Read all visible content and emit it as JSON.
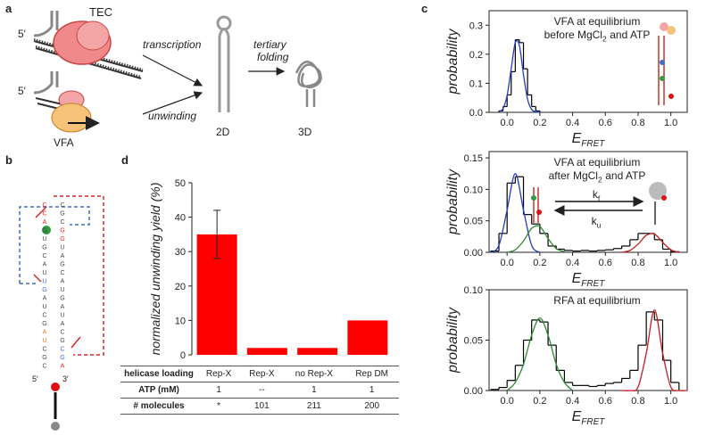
{
  "panel_labels": [
    "a",
    "b",
    "c",
    "d"
  ],
  "diagram_a": {
    "tec": "TEC",
    "five_prime_top": "5′",
    "five_prime_bottom": "5′",
    "vfa": "VFA",
    "transcription": "transcription",
    "unwinding": "unwinding",
    "tertiary": "tertiary",
    "folding": "folding",
    "two_d": "2D",
    "three_d": "3D"
  },
  "diagram_b": {
    "five_prime": "5′",
    "three_prime": "3′",
    "letters": [
      {
        "text": "C",
        "color": "#d62728"
      },
      {
        "text": "C",
        "color": "#d62728"
      },
      {
        "text": "A",
        "color": "#d62728"
      },
      {
        "text": "G",
        "color": "#444444"
      },
      {
        "text": "U",
        "color": "#444444"
      },
      {
        "text": "G",
        "color": "#444444"
      },
      {
        "text": "C",
        "color": "#444444"
      },
      {
        "text": "A",
        "color": "#444444"
      },
      {
        "text": "U",
        "color": "#444444"
      },
      {
        "text": "U",
        "color": "#3a6fc4"
      },
      {
        "text": "G",
        "color": "#3a6fc4"
      },
      {
        "text": "A",
        "color": "#444444"
      },
      {
        "text": "U",
        "color": "#444444"
      },
      {
        "text": "C",
        "color": "#444444"
      },
      {
        "text": "G",
        "color": "#444444"
      },
      {
        "text": "A",
        "color": "#e07b2a"
      },
      {
        "text": "U",
        "color": "#e07b2a"
      },
      {
        "text": "C",
        "color": "#444444"
      },
      {
        "text": "G",
        "color": "#444444"
      },
      {
        "text": "C",
        "color": "#444444"
      },
      {
        "text": "A",
        "color": "#d62728"
      },
      {
        "text": "G",
        "color": "#3a6fc4"
      },
      {
        "text": "C",
        "color": "#3a6fc4"
      },
      {
        "text": "G",
        "color": "#444444"
      },
      {
        "text": "C",
        "color": "#444444"
      },
      {
        "text": "A",
        "color": "#444444"
      },
      {
        "text": "U",
        "color": "#444444"
      },
      {
        "text": "A",
        "color": "#444444"
      },
      {
        "text": "G",
        "color": "#444444"
      },
      {
        "text": "U",
        "color": "#444444"
      },
      {
        "text": "A",
        "color": "#444444"
      },
      {
        "text": "C",
        "color": "#444444"
      },
      {
        "text": "G",
        "color": "#444444"
      },
      {
        "text": "A",
        "color": "#444444"
      },
      {
        "text": "U",
        "color": "#444444"
      },
      {
        "text": "G",
        "color": "#d62728"
      },
      {
        "text": "G",
        "color": "#d62728"
      },
      {
        "text": "C",
        "color": "#444444"
      },
      {
        "text": "G",
        "color": "#444444"
      },
      {
        "text": "C",
        "color": "#444444"
      }
    ]
  },
  "chart_data": [
    {
      "type": "bar",
      "ylabel": "normalized unwinding yield (%)",
      "values": [
        35,
        2,
        2,
        10
      ],
      "errors": [
        7,
        null,
        null,
        null
      ],
      "color": "#ff0000",
      "ylim": [
        0,
        50
      ],
      "yticks": [
        0,
        10,
        20,
        30,
        40,
        50
      ],
      "table": {
        "rows": [
          [
            "helicase loading",
            "Rep-X",
            "Rep-X",
            "no Rep-X",
            "Rep DM"
          ],
          [
            "ATP (mM)",
            "1",
            "--",
            "1",
            "1"
          ],
          [
            "# molecules",
            "*",
            "101",
            "211",
            "200"
          ]
        ]
      }
    },
    {
      "type": "histogram",
      "ylabel": "probability",
      "xlabel": "E",
      "xlabel_sub": "FRET",
      "annotation": [
        "VFA at equilibrium",
        {
          "text": "before MgCl",
          "sub": "2",
          "after": "and ATP"
        }
      ],
      "bins": [
        -0.05,
        -0.025,
        0,
        0.025,
        0.05,
        0.075,
        0.1,
        0.125,
        0.15,
        0.175,
        0.2
      ],
      "values": [
        0.005,
        0.02,
        0.06,
        0.14,
        0.25,
        0.24,
        0.15,
        0.06,
        0.02,
        0.005
      ],
      "color": "#000000",
      "fits": [
        {
          "color": "#1f3fbf",
          "x": [
            -0.05,
            -0.025,
            0,
            0.025,
            0.05,
            0.075,
            0.1,
            0.125,
            0.15,
            0.175,
            0.2
          ],
          "values": [
            0.002,
            0.013,
            0.058,
            0.15,
            0.24,
            0.23,
            0.13,
            0.045,
            0.01,
            0.002,
            0
          ]
        }
      ],
      "xlim": [
        -0.11,
        1.1
      ],
      "xticks": [
        {
          "value": 0,
          "label": "0.0"
        },
        {
          "value": 0.2,
          "label": "0.2"
        },
        {
          "value": 0.4,
          "label": "0.4"
        },
        {
          "value": 0.6,
          "label": "0.6"
        },
        {
          "value": 0.8,
          "label": "0.8"
        },
        {
          "value": 1,
          "label": "1.0"
        }
      ],
      "ylim": [
        0,
        0.35
      ],
      "yticks": [
        {
          "value": 0,
          "label": "0.0"
        },
        {
          "value": 0.1,
          "label": "0.1"
        },
        {
          "value": 0.2,
          "label": "0.2"
        },
        {
          "value": 0.3,
          "label": "0.3"
        }
      ]
    },
    {
      "type": "histogram",
      "ylabel": "probability",
      "xlabel": "E",
      "xlabel_sub": "FRET",
      "annotation": [
        "VFA at equilibrium",
        {
          "text": "after MgCl",
          "sub": "2",
          "after": "and ATP"
        }
      ],
      "rates": [
        {
          "text": "k",
          "sub": "f"
        },
        {
          "text": "k",
          "sub": "u"
        }
      ],
      "bins": [
        -0.1,
        -0.05,
        0,
        0.05,
        0.1,
        0.15,
        0.2,
        0.25,
        0.3,
        0.35,
        0.4,
        0.45,
        0.5,
        0.55,
        0.6,
        0.65,
        0.7,
        0.75,
        0.8,
        0.85,
        0.9,
        0.95,
        1.0,
        1.05
      ],
      "values": [
        0.002,
        0.03,
        0.11,
        0.12,
        0.06,
        0.045,
        0.03,
        0.01,
        0.005,
        0.003,
        0.002,
        0.003,
        0.002,
        0.003,
        0.004,
        0.006,
        0.01,
        0.02,
        0.03,
        0.03,
        0.02,
        0.005,
        0.001
      ],
      "color": "#000000",
      "fits": [
        {
          "color": "#1f3fbf",
          "x": [
            -0.1,
            -0.05,
            0,
            0.05,
            0.1,
            0.15,
            0.2
          ],
          "values": [
            0,
            0.011,
            0.067,
            0.125,
            0.067,
            0.011,
            0
          ]
        },
        {
          "color": "#2e8b2e",
          "x": [
            0,
            0.05,
            0.1,
            0.15,
            0.2,
            0.25,
            0.3,
            0.35
          ],
          "values": [
            0,
            0.004,
            0.018,
            0.038,
            0.041,
            0.022,
            0.006,
            0.001
          ]
        },
        {
          "color": "#c41e1e",
          "x": [
            0.7,
            0.75,
            0.8,
            0.85,
            0.9,
            0.95,
            1.0,
            1.05
          ],
          "values": [
            0,
            0.003,
            0.013,
            0.027,
            0.029,
            0.016,
            0.004,
            0
          ]
        }
      ],
      "xlim": [
        -0.11,
        1.1
      ],
      "xticks": [
        {
          "value": 0,
          "label": "0.0"
        },
        {
          "value": 0.2,
          "label": "0.2"
        },
        {
          "value": 0.4,
          "label": "0.4"
        },
        {
          "value": 0.6,
          "label": "0.6"
        },
        {
          "value": 0.8,
          "label": "0.8"
        },
        {
          "value": 1,
          "label": "1.0"
        }
      ],
      "ylim": [
        0,
        0.16
      ],
      "yticks": [
        {
          "value": 0,
          "label": "0.00"
        },
        {
          "value": 0.05,
          "label": "0.05"
        },
        {
          "value": 0.1,
          "label": "0.10"
        },
        {
          "value": 0.15,
          "label": "0.15"
        }
      ]
    },
    {
      "type": "histogram",
      "ylabel": "probability",
      "xlabel": "E",
      "xlabel_sub": "FRET",
      "annotation": [
        "RFA at equilibrium"
      ],
      "bins": [
        -0.1,
        -0.05,
        0,
        0.05,
        0.1,
        0.15,
        0.2,
        0.25,
        0.3,
        0.35,
        0.4,
        0.45,
        0.5,
        0.55,
        0.6,
        0.65,
        0.7,
        0.75,
        0.8,
        0.85,
        0.9,
        0.95,
        1.0,
        1.05
      ],
      "values": [
        0.001,
        0.003,
        0.01,
        0.025,
        0.05,
        0.07,
        0.068,
        0.045,
        0.02,
        0.008,
        0.005,
        0.005,
        0.004,
        0.005,
        0.007,
        0.008,
        0.012,
        0.02,
        0.045,
        0.078,
        0.07,
        0.03,
        0.008
      ],
      "color": "#000000",
      "fits": [
        {
          "color": "#2e8b2e",
          "x": [
            0,
            0.05,
            0.1,
            0.15,
            0.2,
            0.25,
            0.3,
            0.35,
            0.4
          ],
          "values": [
            0,
            0.008,
            0.026,
            0.055,
            0.072,
            0.055,
            0.026,
            0.008,
            0
          ]
        },
        {
          "color": "#c41e1e",
          "x": [
            0.7,
            0.75,
            0.8,
            0.85,
            0.9,
            0.95,
            1.0,
            1.05,
            1.1
          ],
          "values": [
            0,
            0,
            0.0035,
            0.037,
            0.08,
            0.037,
            0.0035,
            0,
            0
          ]
        }
      ],
      "xlim": [
        -0.11,
        1.1
      ],
      "xticks": [
        {
          "value": 0,
          "label": "0.0"
        },
        {
          "value": 0.2,
          "label": "0.2"
        },
        {
          "value": 0.4,
          "label": "0.4"
        },
        {
          "value": 0.6,
          "label": "0.6"
        },
        {
          "value": 0.8,
          "label": "0.8"
        },
        {
          "value": 1,
          "label": "1.0"
        }
      ],
      "ylim": [
        0,
        0.1
      ],
      "yticks": [
        {
          "value": 0,
          "label": "0.00"
        },
        {
          "value": 0.05,
          "label": "0.05"
        },
        {
          "value": 0.1,
          "label": "0.10"
        }
      ]
    }
  ]
}
